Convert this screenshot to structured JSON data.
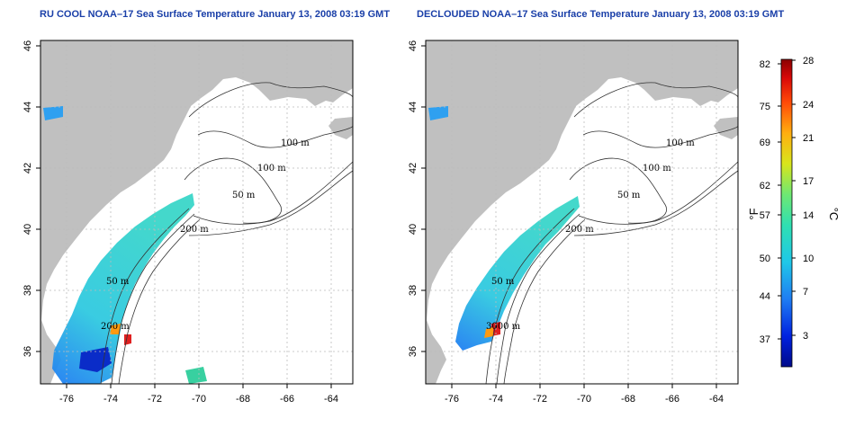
{
  "panels": [
    {
      "title": "RU COOL NOAA–17 Sea Surface Temperature January 13, 2008 03:19 GMT"
    },
    {
      "title": "DECLOUDED NOAA–17 Sea Surface Temperature January 13, 2008 03:19 GMT"
    }
  ],
  "axes": {
    "x_ticks": [
      "-76",
      "-74",
      "-72",
      "-70",
      "-68",
      "-66",
      "-64"
    ],
    "y_ticks": [
      "36",
      "38",
      "40",
      "42",
      "44",
      "46"
    ]
  },
  "contour_labels": {
    "left": [
      "100 m",
      "100 m",
      "50 m",
      "200 m",
      "50 m",
      "200 m"
    ],
    "right": [
      "100 m",
      "100 m",
      "50 m",
      "200 m",
      "50 m",
      "3000 m"
    ]
  },
  "colorbar": {
    "fahrenheit_label": "°F",
    "celsius_label": "°C",
    "fahrenheit_ticks": [
      "82",
      "75",
      "69",
      "62",
      "57",
      "50",
      "44",
      "37"
    ],
    "celsius_ticks": [
      "28",
      "24",
      "21",
      "17",
      "14",
      "10",
      "7",
      "3"
    ]
  },
  "colors": {
    "title": "#1a3fa8",
    "land": "#c0c0c0",
    "ocean": "#ffffff",
    "grid": "#bbbbbb",
    "contour": "#333333"
  }
}
